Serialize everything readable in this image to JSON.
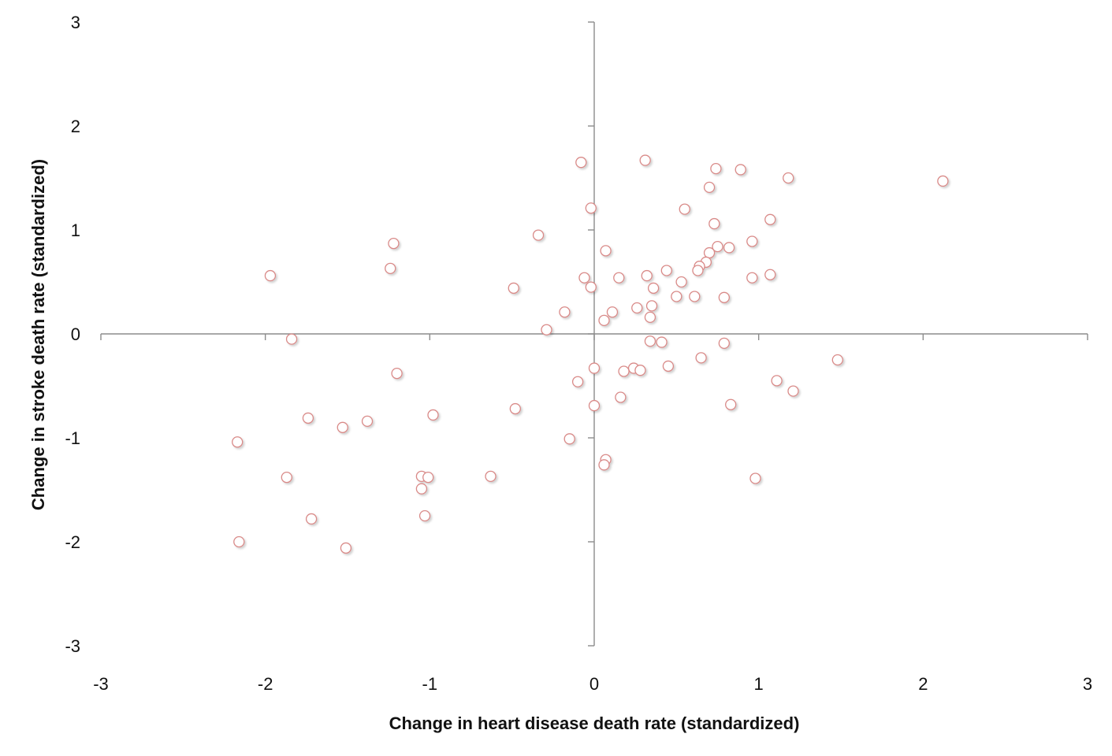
{
  "chart_data": {
    "type": "scatter",
    "title": "",
    "xlabel": "Change in heart disease death rate (standardized)",
    "ylabel": "Change in stroke death rate (standardized)",
    "xlim": [
      -3,
      3
    ],
    "ylim": [
      -3,
      3
    ],
    "xticks": [
      "-3",
      "-2",
      "-1",
      "0",
      "1",
      "2",
      "3"
    ],
    "yticks": [
      "3",
      "2",
      "1",
      "0",
      "-1",
      "-2",
      "-3"
    ],
    "grid": false,
    "legend": "none",
    "marker_color": "#d98a88",
    "axis_color": "#8c8c8c",
    "series": [
      {
        "points": [
          [
            -0.08,
            1.65
          ],
          [
            0.31,
            1.67
          ],
          [
            0.74,
            1.59
          ],
          [
            0.89,
            1.58
          ],
          [
            1.18,
            1.5
          ],
          [
            2.12,
            1.47
          ],
          [
            0.7,
            1.41
          ],
          [
            -0.02,
            1.21
          ],
          [
            0.55,
            1.2
          ],
          [
            1.07,
            1.1
          ],
          [
            0.73,
            1.06
          ],
          [
            -0.34,
            0.95
          ],
          [
            0.96,
            0.89
          ],
          [
            -1.22,
            0.87
          ],
          [
            0.75,
            0.84
          ],
          [
            0.82,
            0.83
          ],
          [
            0.07,
            0.8
          ],
          [
            0.7,
            0.78
          ],
          [
            0.68,
            0.69
          ],
          [
            0.64,
            0.65
          ],
          [
            -1.24,
            0.63
          ],
          [
            0.63,
            0.61
          ],
          [
            0.44,
            0.61
          ],
          [
            1.07,
            0.57
          ],
          [
            -1.97,
            0.56
          ],
          [
            0.32,
            0.56
          ],
          [
            0.15,
            0.54
          ],
          [
            -0.06,
            0.54
          ],
          [
            0.96,
            0.54
          ],
          [
            0.53,
            0.5
          ],
          [
            -0.02,
            0.45
          ],
          [
            0.36,
            0.44
          ],
          [
            -0.49,
            0.44
          ],
          [
            0.5,
            0.36
          ],
          [
            0.61,
            0.36
          ],
          [
            0.79,
            0.35
          ],
          [
            0.35,
            0.27
          ],
          [
            0.26,
            0.25
          ],
          [
            0.11,
            0.21
          ],
          [
            -0.18,
            0.21
          ],
          [
            0.34,
            0.16
          ],
          [
            0.06,
            0.13
          ],
          [
            -0.29,
            0.04
          ],
          [
            -1.84,
            -0.05
          ],
          [
            0.34,
            -0.07
          ],
          [
            0.41,
            -0.08
          ],
          [
            0.79,
            -0.09
          ],
          [
            0.65,
            -0.23
          ],
          [
            1.48,
            -0.25
          ],
          [
            0.45,
            -0.31
          ],
          [
            0.24,
            -0.33
          ],
          [
            0.0,
            -0.33
          ],
          [
            0.28,
            -0.35
          ],
          [
            0.18,
            -0.36
          ],
          [
            -1.2,
            -0.38
          ],
          [
            1.11,
            -0.45
          ],
          [
            -0.1,
            -0.46
          ],
          [
            1.21,
            -0.55
          ],
          [
            0.16,
            -0.61
          ],
          [
            0.83,
            -0.68
          ],
          [
            0.0,
            -0.69
          ],
          [
            -0.48,
            -0.72
          ],
          [
            -0.98,
            -0.78
          ],
          [
            -1.74,
            -0.81
          ],
          [
            -1.38,
            -0.84
          ],
          [
            -1.53,
            -0.9
          ],
          [
            -0.15,
            -1.01
          ],
          [
            -2.17,
            -1.04
          ],
          [
            0.07,
            -1.21
          ],
          [
            0.06,
            -1.26
          ],
          [
            -0.63,
            -1.37
          ],
          [
            -1.05,
            -1.37
          ],
          [
            -1.01,
            -1.38
          ],
          [
            -1.87,
            -1.38
          ],
          [
            0.98,
            -1.39
          ],
          [
            -1.05,
            -1.49
          ],
          [
            -1.03,
            -1.75
          ],
          [
            -1.72,
            -1.78
          ],
          [
            -2.16,
            -2.0
          ],
          [
            -1.51,
            -2.06
          ]
        ]
      }
    ]
  }
}
